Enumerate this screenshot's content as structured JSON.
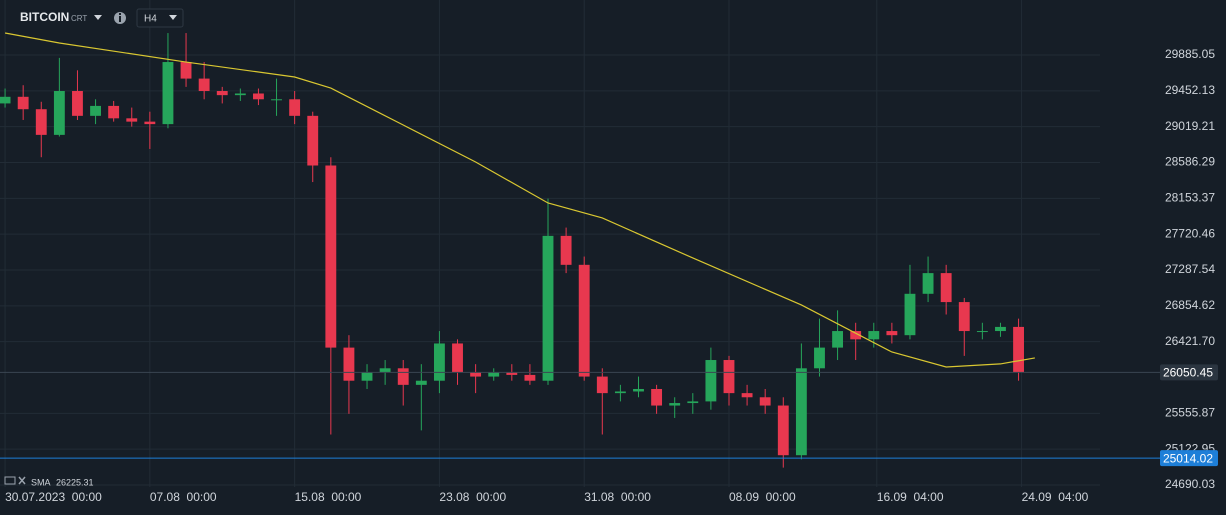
{
  "header": {
    "symbol": "BITCOIN",
    "exchange": "CRT",
    "timeframe": "H4"
  },
  "chart_data": {
    "type": "candlestick",
    "x": [
      0,
      1,
      2,
      3,
      4,
      5,
      6,
      7,
      8,
      9,
      10,
      11,
      12,
      13,
      14,
      15,
      16,
      17,
      18,
      19,
      20,
      21,
      22,
      23,
      24,
      25,
      26,
      27,
      28,
      29,
      30,
      31,
      32,
      33,
      34,
      35,
      36,
      37,
      38,
      39,
      40,
      41,
      42,
      43,
      44,
      45,
      46,
      47,
      48,
      49,
      50,
      51,
      52,
      53,
      54,
      55,
      56
    ],
    "open": [
      29300,
      29380,
      29230,
      28920,
      29450,
      29150,
      29270,
      29120,
      29080,
      29050,
      29800,
      29600,
      29450,
      29400,
      29420,
      29350,
      29350,
      29150,
      28550,
      26350,
      25950,
      26050,
      26100,
      25900,
      25950,
      26400,
      26050,
      26000,
      26050,
      26020,
      25950,
      27700,
      27350,
      26000,
      25800,
      25820,
      25850,
      25650,
      25680,
      25700,
      26200,
      25800,
      25750,
      25650,
      25050,
      26100,
      26350,
      26550,
      26450,
      26550,
      26500,
      27000,
      27250,
      26900,
      26550,
      26550,
      26600
    ],
    "high": [
      29480,
      29520,
      29320,
      29850,
      29700,
      29350,
      29330,
      29250,
      29200,
      30150,
      30150,
      29800,
      29500,
      29480,
      29480,
      29600,
      29450,
      29200,
      28650,
      26500,
      26150,
      26200,
      26200,
      26150,
      26550,
      26450,
      26150,
      26100,
      26150,
      26150,
      28150,
      27800,
      27450,
      26100,
      25900,
      26000,
      25900,
      25750,
      25800,
      26350,
      26250,
      25900,
      25850,
      25750,
      26400,
      26700,
      26800,
      26650,
      26650,
      26650,
      27350,
      27450,
      27350,
      26950,
      26650,
      26650,
      26700
    ],
    "low": [
      29250,
      29100,
      28650,
      28900,
      29100,
      29050,
      29080,
      29020,
      28750,
      29000,
      29500,
      29350,
      29300,
      29330,
      29280,
      29150,
      29050,
      28350,
      25300,
      25550,
      25850,
      25900,
      25650,
      25350,
      25800,
      25900,
      25800,
      25950,
      25950,
      25900,
      25900,
      27250,
      25950,
      25300,
      25700,
      25750,
      25550,
      25500,
      25550,
      25600,
      25650,
      25650,
      25550,
      24900,
      25000,
      26000,
      26200,
      26200,
      26350,
      26400,
      26450,
      26900,
      26750,
      26250,
      26450,
      26480,
      25950
    ],
    "close": [
      29380,
      29230,
      28920,
      29450,
      29150,
      29270,
      29120,
      29080,
      29050,
      29800,
      29600,
      29450,
      29400,
      29420,
      29350,
      29350,
      29150,
      28550,
      26350,
      25950,
      26050,
      26100,
      25900,
      25950,
      26400,
      26050,
      26000,
      26050,
      26020,
      25950,
      27700,
      27350,
      26000,
      25800,
      25820,
      25850,
      25650,
      25680,
      25700,
      26200,
      25800,
      25750,
      25650,
      25050,
      26100,
      26350,
      26550,
      26450,
      26550,
      26500,
      27000,
      27250,
      26900,
      26550,
      26550,
      26600,
      26050.45
    ],
    "up_color": "#26a65b",
    "down_color": "#e8384f",
    "sma": {
      "name": "SMA",
      "color": "#d9c731",
      "x": [
        0,
        3,
        10,
        16,
        18,
        22,
        26,
        30,
        33,
        38,
        44,
        49,
        52,
        55,
        56.9
      ],
      "values": [
        30151,
        30030,
        29800,
        29619,
        29486,
        29039,
        28592,
        28097,
        27916,
        27433,
        26865,
        26297,
        26116,
        26153,
        26225.31
      ]
    },
    "price_lines": [
      {
        "value": 26050.45,
        "color": "#3a4652",
        "box": "#2b3540"
      },
      {
        "value": 25014.02,
        "color": "#1e7fd8",
        "box": "#1e7fd8"
      }
    ],
    "xlim": [
      -0.28,
      60.5
    ],
    "ylim": [
      24665.9,
      30549.5
    ],
    "yticks": [
      24690.03,
      25122.95,
      25555.87,
      {
        "value": 26421.7,
        "label": "26421.70"
      },
      26854.62,
      27287.54,
      27720.46,
      28153.37,
      28586.29,
      29019.21,
      29452.13,
      29885.05
    ],
    "xticks": [
      {
        "value": 0,
        "label": "30.07.2023  00:00"
      },
      {
        "value": 8,
        "label": "07.08  00:00"
      },
      {
        "value": 16,
        "label": "15.08  00:00"
      },
      {
        "value": 24,
        "label": "23.08  00:00"
      },
      {
        "value": 32,
        "label": "31.08  00:00"
      },
      {
        "value": 40,
        "label": "08.09  00:00"
      },
      {
        "value": 48.1667,
        "label": "16.09  04:00"
      },
      {
        "value": 56.1667,
        "label": "24.09  04:00"
      }
    ],
    "grid": true
  }
}
